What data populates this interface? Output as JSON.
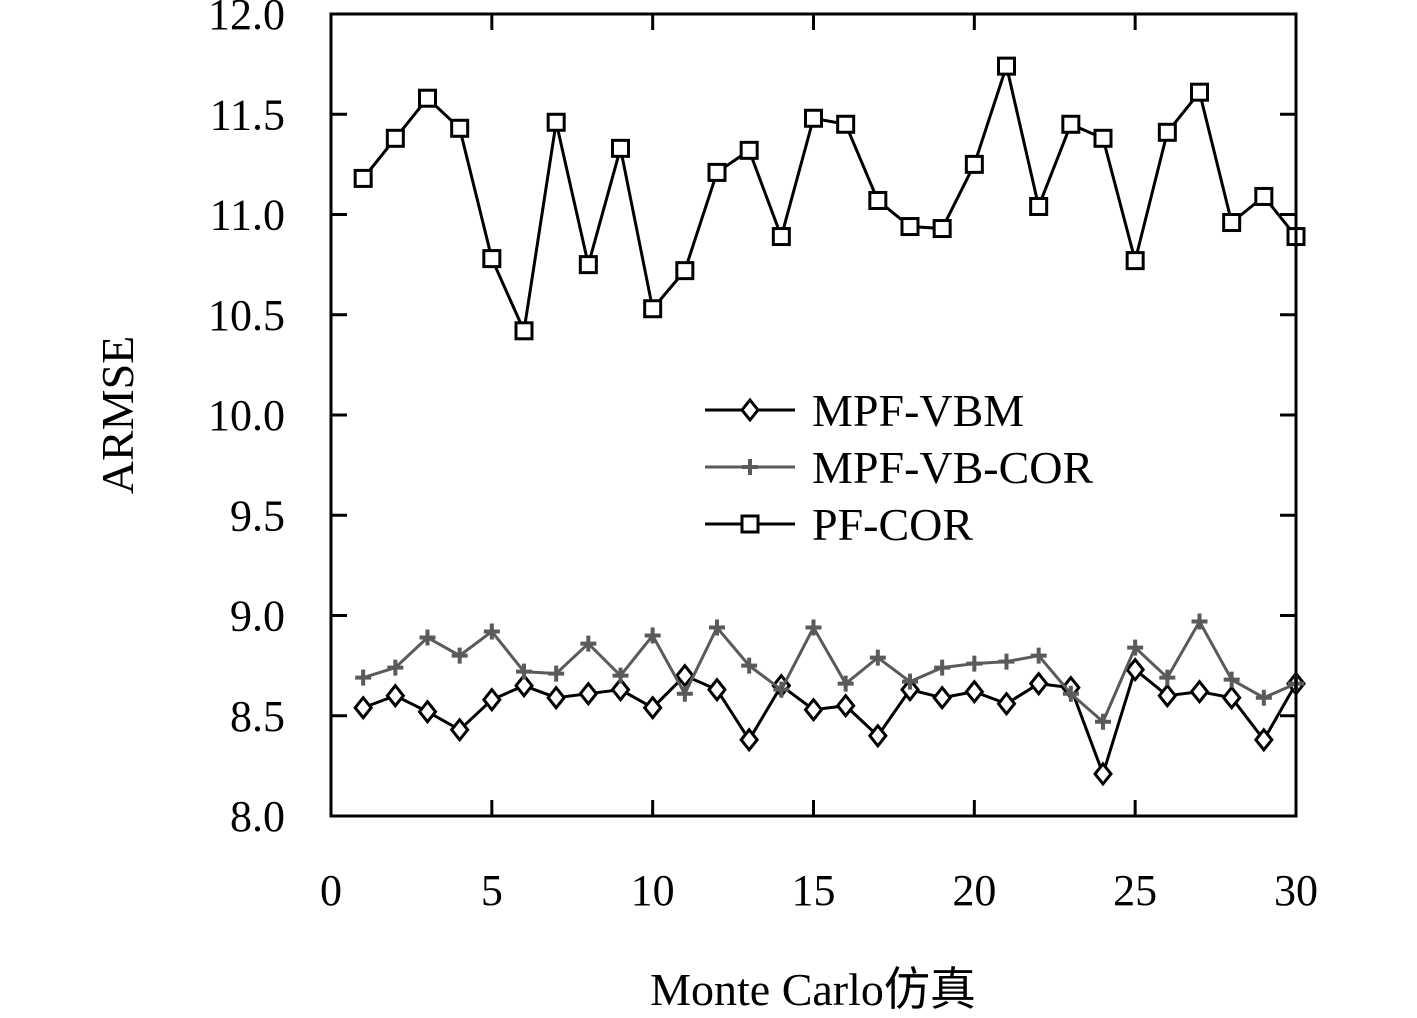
{
  "chart_data": {
    "type": "line",
    "xlabel": "Monte Carlo仿真",
    "ylabel": "ARMSE",
    "xlim": [
      0,
      30
    ],
    "ylim": [
      8.0,
      12.0
    ],
    "xticks": [
      "0",
      "5",
      "10",
      "15",
      "20",
      "25",
      "30"
    ],
    "yticks": [
      "8.0",
      "8.5",
      "9.0",
      "9.5",
      "10.0",
      "10.5",
      "11.0",
      "11.5",
      "12.0"
    ],
    "grid": false,
    "legend_position": "center-right",
    "x": [
      1,
      2,
      3,
      4,
      5,
      6,
      7,
      8,
      9,
      10,
      11,
      12,
      13,
      14,
      15,
      16,
      17,
      18,
      19,
      20,
      21,
      22,
      23,
      24,
      25,
      26,
      27,
      28,
      29,
      30
    ],
    "series": [
      {
        "name": "MPF-VBM",
        "marker": "diamond",
        "color": "#000000",
        "values": [
          8.54,
          8.6,
          8.52,
          8.43,
          8.58,
          8.65,
          8.59,
          8.61,
          8.63,
          8.54,
          8.7,
          8.63,
          8.38,
          8.65,
          8.53,
          8.55,
          8.4,
          8.63,
          8.59,
          8.62,
          8.56,
          8.66,
          8.64,
          8.21,
          8.73,
          8.6,
          8.62,
          8.59,
          8.38,
          8.66
        ]
      },
      {
        "name": "MPF-VB-COR",
        "marker": "plus",
        "color": "#5a5a5a",
        "values": [
          8.69,
          8.74,
          8.89,
          8.8,
          8.92,
          8.72,
          8.71,
          8.86,
          8.7,
          8.9,
          8.61,
          8.94,
          8.75,
          8.63,
          8.94,
          8.66,
          8.79,
          8.67,
          8.74,
          8.76,
          8.77,
          8.8,
          8.61,
          8.47,
          8.84,
          8.69,
          8.97,
          8.68,
          8.59,
          8.66
        ]
      },
      {
        "name": "PF-COR",
        "marker": "square",
        "color": "#000000",
        "values": [
          11.18,
          11.38,
          11.58,
          11.43,
          10.78,
          10.42,
          11.46,
          10.75,
          11.33,
          10.53,
          10.72,
          11.21,
          11.32,
          10.89,
          11.48,
          11.45,
          11.07,
          10.94,
          10.93,
          11.25,
          11.74,
          11.04,
          11.45,
          11.38,
          10.77,
          11.41,
          11.61,
          10.96,
          11.09,
          10.89
        ]
      }
    ]
  }
}
